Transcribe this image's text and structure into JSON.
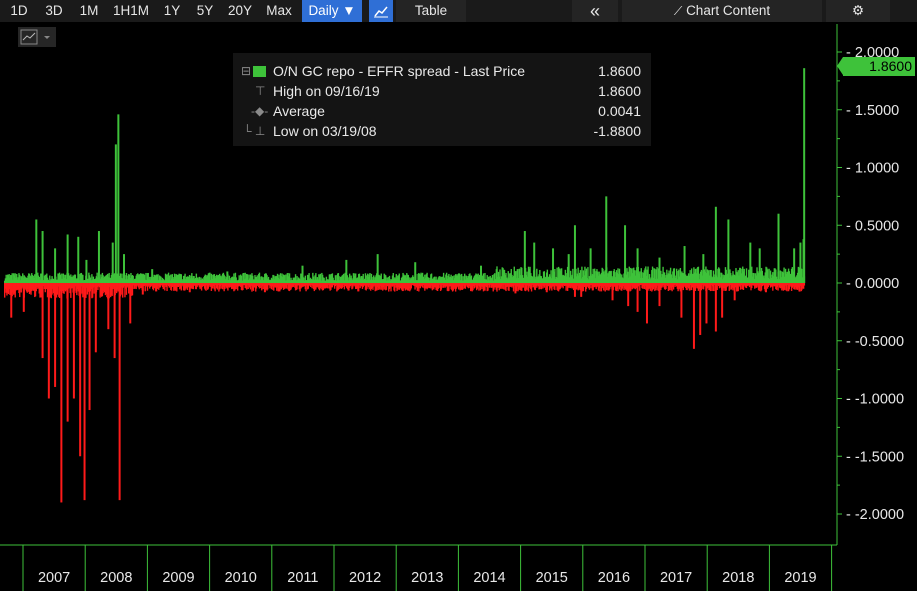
{
  "toolbar": {
    "ranges": [
      "1D",
      "3D",
      "1M",
      "1H1M",
      "1Y",
      "5Y",
      "20Y",
      "Max"
    ],
    "frequency": "Daily ▼",
    "table_label": "Table",
    "collapse_glyph": "«",
    "chart_content_label": "Chart Content",
    "settings_glyph": "⚙"
  },
  "legend": {
    "series_label": "O/N GC repo - EFFR spread - Last Price",
    "series_value": "1.8600",
    "high_label": "High on 09/16/19",
    "high_value": "1.8600",
    "average_label": "Average",
    "average_value": "0.0041",
    "low_label": "Low on 03/19/08",
    "low_value": "-1.8800"
  },
  "last_price_badge": "1.8600",
  "colors": {
    "positive": "#3ec23a",
    "negative": "#ff1a1a",
    "axis": "#3ec23a",
    "active_button": "#2f6fd6"
  },
  "chart_data": {
    "type": "bar",
    "series": [
      {
        "name": "O/N GC repo - EFFR spread - Last Price"
      }
    ],
    "ylim": [
      -2.25,
      2.1
    ],
    "yticks": [
      "2.0000",
      "1.5000",
      "1.0000",
      "0.5000",
      "0.0000",
      "-0.5000",
      "-1.0000",
      "-1.5000",
      "-2.0000"
    ],
    "ytick_values": [
      2.0,
      1.5,
      1.0,
      0.5,
      0.0,
      -0.5,
      -1.0,
      -1.5,
      -2.0
    ],
    "xticks": [
      "2007",
      "2008",
      "2009",
      "2010",
      "2011",
      "2012",
      "2013",
      "2014",
      "2015",
      "2016",
      "2017",
      "2018",
      "2019"
    ],
    "baseline_pos": 0.05,
    "baseline_neg": -0.05,
    "positive_spikes": [
      {
        "x": 2007.45,
        "y": 0.55
      },
      {
        "x": 2007.55,
        "y": 0.45
      },
      {
        "x": 2007.75,
        "y": 0.3
      },
      {
        "x": 2007.95,
        "y": 0.42
      },
      {
        "x": 2008.12,
        "y": 0.4
      },
      {
        "x": 2008.25,
        "y": 0.2
      },
      {
        "x": 2008.45,
        "y": 0.45
      },
      {
        "x": 2008.67,
        "y": 0.35
      },
      {
        "x": 2008.72,
        "y": 1.2
      },
      {
        "x": 2008.76,
        "y": 1.46
      },
      {
        "x": 2008.85,
        "y": 0.25
      },
      {
        "x": 2009.3,
        "y": 0.12
      },
      {
        "x": 2010.5,
        "y": 0.1
      },
      {
        "x": 2011.7,
        "y": 0.15
      },
      {
        "x": 2012.4,
        "y": 0.2
      },
      {
        "x": 2012.9,
        "y": 0.25
      },
      {
        "x": 2013.5,
        "y": 0.18
      },
      {
        "x": 2014.55,
        "y": 0.15
      },
      {
        "x": 2014.8,
        "y": 0.12
      },
      {
        "x": 2015.25,
        "y": 0.45
      },
      {
        "x": 2015.4,
        "y": 0.35
      },
      {
        "x": 2015.7,
        "y": 0.3
      },
      {
        "x": 2015.95,
        "y": 0.25
      },
      {
        "x": 2016.05,
        "y": 0.5
      },
      {
        "x": 2016.3,
        "y": 0.3
      },
      {
        "x": 2016.55,
        "y": 0.75
      },
      {
        "x": 2016.85,
        "y": 0.5
      },
      {
        "x": 2017.05,
        "y": 0.3
      },
      {
        "x": 2017.4,
        "y": 0.22
      },
      {
        "x": 2017.8,
        "y": 0.32
      },
      {
        "x": 2018.1,
        "y": 0.25
      },
      {
        "x": 2018.3,
        "y": 0.66
      },
      {
        "x": 2018.5,
        "y": 0.55
      },
      {
        "x": 2018.85,
        "y": 0.35
      },
      {
        "x": 2019.0,
        "y": 0.3
      },
      {
        "x": 2019.3,
        "y": 0.6
      },
      {
        "x": 2019.55,
        "y": 0.3
      },
      {
        "x": 2019.65,
        "y": 0.35
      },
      {
        "x": 2019.7,
        "y": 0.38
      },
      {
        "x": 2019.71,
        "y": 1.86
      }
    ],
    "negative_spikes": [
      {
        "x": 2007.05,
        "y": -0.3
      },
      {
        "x": 2007.25,
        "y": -0.25
      },
      {
        "x": 2007.55,
        "y": -0.65
      },
      {
        "x": 2007.65,
        "y": -1.0
      },
      {
        "x": 2007.75,
        "y": -0.9
      },
      {
        "x": 2007.85,
        "y": -1.9
      },
      {
        "x": 2007.95,
        "y": -1.2
      },
      {
        "x": 2008.05,
        "y": -1.0
      },
      {
        "x": 2008.15,
        "y": -1.5
      },
      {
        "x": 2008.22,
        "y": -1.88
      },
      {
        "x": 2008.3,
        "y": -1.1
      },
      {
        "x": 2008.4,
        "y": -0.6
      },
      {
        "x": 2008.6,
        "y": -0.4
      },
      {
        "x": 2008.7,
        "y": -0.65
      },
      {
        "x": 2008.78,
        "y": -1.88
      },
      {
        "x": 2008.95,
        "y": -0.35
      },
      {
        "x": 2009.15,
        "y": -0.1
      },
      {
        "x": 2009.9,
        "y": -0.08
      },
      {
        "x": 2011.1,
        "y": -0.08
      },
      {
        "x": 2011.6,
        "y": -0.06
      },
      {
        "x": 2013.3,
        "y": -0.07
      },
      {
        "x": 2014.25,
        "y": -0.06
      },
      {
        "x": 2015.1,
        "y": -0.09
      },
      {
        "x": 2015.6,
        "y": -0.08
      },
      {
        "x": 2016.05,
        "y": -0.12
      },
      {
        "x": 2016.15,
        "y": -0.12
      },
      {
        "x": 2016.65,
        "y": -0.15
      },
      {
        "x": 2016.9,
        "y": -0.2
      },
      {
        "x": 2017.05,
        "y": -0.25
      },
      {
        "x": 2017.2,
        "y": -0.35
      },
      {
        "x": 2017.4,
        "y": -0.2
      },
      {
        "x": 2017.75,
        "y": -0.3
      },
      {
        "x": 2017.95,
        "y": -0.57
      },
      {
        "x": 2018.05,
        "y": -0.45
      },
      {
        "x": 2018.15,
        "y": -0.35
      },
      {
        "x": 2018.3,
        "y": -0.42
      },
      {
        "x": 2018.4,
        "y": -0.3
      },
      {
        "x": 2018.6,
        "y": -0.15
      },
      {
        "x": 2019.1,
        "y": -0.08
      },
      {
        "x": 2019.6,
        "y": -0.05
      }
    ],
    "x_start": 2006.95,
    "x_end": 2019.72,
    "xlim": [
      2006.95,
      2020.25
    ]
  }
}
